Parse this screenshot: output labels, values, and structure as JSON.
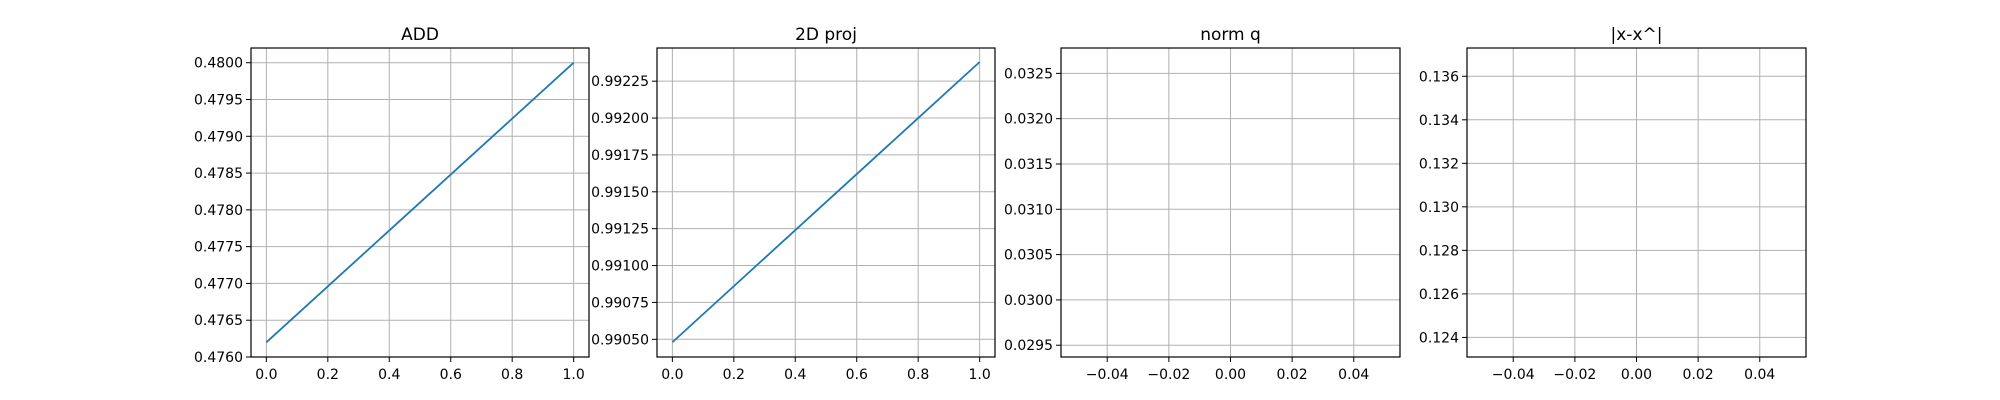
{
  "chart_data": [
    {
      "type": "line",
      "title": "ADD",
      "xlabel": "",
      "ylabel": "",
      "xlim": [
        -0.05,
        1.05
      ],
      "ylim": [
        0.476,
        0.4802
      ],
      "xticks": [
        0.0,
        0.2,
        0.4,
        0.6,
        0.8,
        1.0
      ],
      "xtick_labels": [
        "0.0",
        "0.2",
        "0.4",
        "0.6",
        "0.8",
        "1.0"
      ],
      "yticks": [
        0.476,
        0.4765,
        0.477,
        0.4775,
        0.478,
        0.4785,
        0.479,
        0.4795,
        0.48
      ],
      "ytick_labels": [
        "0.4760",
        "0.4765",
        "0.4770",
        "0.4775",
        "0.4780",
        "0.4785",
        "0.4790",
        "0.4795",
        "0.4800"
      ],
      "grid": true,
      "series": [
        {
          "x": [
            0.0,
            1.0
          ],
          "y": [
            0.4762,
            0.48
          ],
          "color": "#1f77b4"
        }
      ]
    },
    {
      "type": "line",
      "title": "2D proj",
      "xlabel": "",
      "ylabel": "",
      "xlim": [
        -0.05,
        1.05
      ],
      "ylim": [
        0.99038,
        0.992475
      ],
      "xticks": [
        0.0,
        0.2,
        0.4,
        0.6,
        0.8,
        1.0
      ],
      "xtick_labels": [
        "0.0",
        "0.2",
        "0.4",
        "0.6",
        "0.8",
        "1.0"
      ],
      "yticks": [
        0.9905,
        0.99075,
        0.991,
        0.99125,
        0.9915,
        0.99175,
        0.992,
        0.99225
      ],
      "ytick_labels": [
        "0.99050",
        "0.99075",
        "0.99100",
        "0.99125",
        "0.99150",
        "0.99175",
        "0.99200",
        "0.99225"
      ],
      "grid": true,
      "series": [
        {
          "x": [
            0.0,
            1.0
          ],
          "y": [
            0.99048,
            0.99238
          ],
          "color": "#1f77b4"
        }
      ]
    },
    {
      "type": "line",
      "title": "norm q",
      "xlabel": "",
      "ylabel": "",
      "xlim": [
        -0.055,
        0.055
      ],
      "ylim": [
        0.02937,
        0.03278
      ],
      "xticks": [
        -0.04,
        -0.02,
        0.0,
        0.02,
        0.04
      ],
      "xtick_labels": [
        "−0.04",
        "−0.02",
        "0.00",
        "0.02",
        "0.04"
      ],
      "yticks": [
        0.0295,
        0.03,
        0.0305,
        0.031,
        0.0315,
        0.032,
        0.0325
      ],
      "ytick_labels": [
        "0.0295",
        "0.0300",
        "0.0305",
        "0.0310",
        "0.0315",
        "0.0320",
        "0.0325"
      ],
      "grid": true,
      "series": []
    },
    {
      "type": "line",
      "title": "|x-x^|",
      "xlabel": "",
      "ylabel": "",
      "xlim": [
        -0.055,
        0.055
      ],
      "ylim": [
        0.1231,
        0.1373
      ],
      "xticks": [
        -0.04,
        -0.02,
        0.0,
        0.02,
        0.04
      ],
      "xtick_labels": [
        "−0.04",
        "−0.02",
        "0.00",
        "0.02",
        "0.04"
      ],
      "yticks": [
        0.124,
        0.126,
        0.128,
        0.13,
        0.132,
        0.134,
        0.136
      ],
      "ytick_labels": [
        "0.124",
        "0.126",
        "0.128",
        "0.130",
        "0.132",
        "0.134",
        "0.136"
      ],
      "grid": true,
      "series": []
    }
  ]
}
